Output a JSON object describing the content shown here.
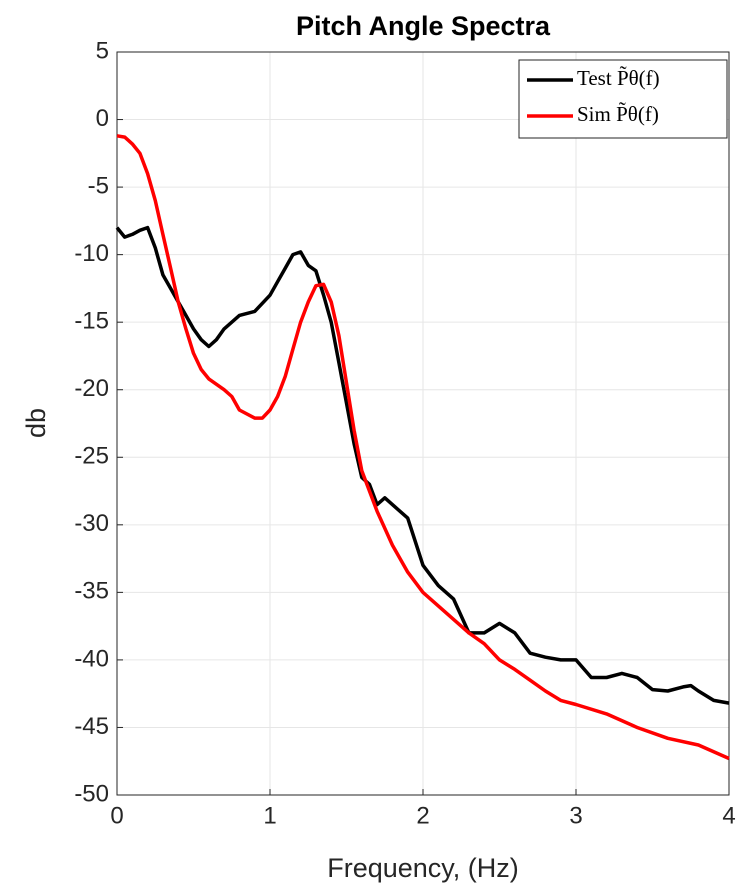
{
  "chart_data": {
    "type": "line",
    "title": "Pitch Angle Spectra",
    "x_label": "Frequency, (Hz)",
    "y_label": "db",
    "xlim": [
      0,
      4
    ],
    "ylim": [
      -50,
      5
    ],
    "xticks": [
      0,
      1,
      2,
      3,
      4
    ],
    "yticks": [
      -50,
      -45,
      -40,
      -35,
      -30,
      -25,
      -20,
      -15,
      -10,
      -5,
      0,
      5
    ],
    "grid": true,
    "legend": "top-right",
    "series": [
      {
        "name": "Test P̃θ(f)",
        "color": "#000000",
        "x": [
          0,
          0.05,
          0.1,
          0.15,
          0.2,
          0.25,
          0.3,
          0.35,
          0.4,
          0.45,
          0.5,
          0.55,
          0.6,
          0.65,
          0.7,
          0.8,
          0.9,
          1.0,
          1.05,
          1.1,
          1.15,
          1.2,
          1.25,
          1.3,
          1.35,
          1.4,
          1.45,
          1.5,
          1.55,
          1.6,
          1.65,
          1.7,
          1.75,
          1.8,
          1.9,
          2.0,
          2.1,
          2.2,
          2.3,
          2.4,
          2.5,
          2.6,
          2.7,
          2.8,
          2.9,
          3.0,
          3.1,
          3.2,
          3.3,
          3.4,
          3.5,
          3.6,
          3.7,
          3.75,
          3.8,
          3.9,
          4.0
        ],
        "values": [
          -8,
          -8.7,
          -8.5,
          -8.2,
          -8,
          -9.5,
          -11.5,
          -12.5,
          -13.5,
          -14.5,
          -15.5,
          -16.3,
          -16.8,
          -16.3,
          -15.5,
          -14.5,
          -14.2,
          -13,
          -12,
          -11,
          -10,
          -9.8,
          -10.8,
          -11.2,
          -13,
          -15,
          -18,
          -21,
          -24,
          -26.5,
          -27,
          -28.5,
          -28,
          -28.5,
          -29.5,
          -33,
          -34.5,
          -35.5,
          -38,
          -38,
          -37.3,
          -38,
          -39.5,
          -39.8,
          -40,
          -40,
          -41.3,
          -41.3,
          -41,
          -41.3,
          -42.2,
          -42.3,
          -42,
          -41.9,
          -42.3,
          -43,
          -43.2
        ]
      },
      {
        "name": "Sim P̃θ(f)",
        "color": "#ff0000",
        "x": [
          0,
          0.05,
          0.1,
          0.15,
          0.2,
          0.25,
          0.3,
          0.35,
          0.4,
          0.45,
          0.5,
          0.55,
          0.6,
          0.7,
          0.75,
          0.8,
          0.9,
          0.95,
          1.0,
          1.05,
          1.1,
          1.15,
          1.2,
          1.25,
          1.3,
          1.35,
          1.4,
          1.45,
          1.5,
          1.55,
          1.6,
          1.7,
          1.8,
          1.9,
          2.0,
          2.1,
          2.2,
          2.3,
          2.4,
          2.5,
          2.6,
          2.7,
          2.8,
          2.9,
          3.0,
          3.2,
          3.4,
          3.6,
          3.8,
          4.0
        ],
        "values": [
          -1.2,
          -1.3,
          -1.8,
          -2.5,
          -4,
          -6,
          -8.5,
          -11,
          -13.5,
          -15.5,
          -17.3,
          -18.5,
          -19.2,
          -20,
          -20.5,
          -21.5,
          -22.1,
          -22.1,
          -21.5,
          -20.5,
          -19,
          -17,
          -15,
          -13.5,
          -12.3,
          -12.2,
          -13.5,
          -16,
          -19.5,
          -23,
          -26,
          -29,
          -31.5,
          -33.5,
          -35,
          -36,
          -37,
          -38,
          -38.8,
          -40,
          -40.7,
          -41.5,
          -42.3,
          -43,
          -43.3,
          -44,
          -45,
          -45.8,
          -46.3,
          -47.3
        ]
      }
    ]
  }
}
